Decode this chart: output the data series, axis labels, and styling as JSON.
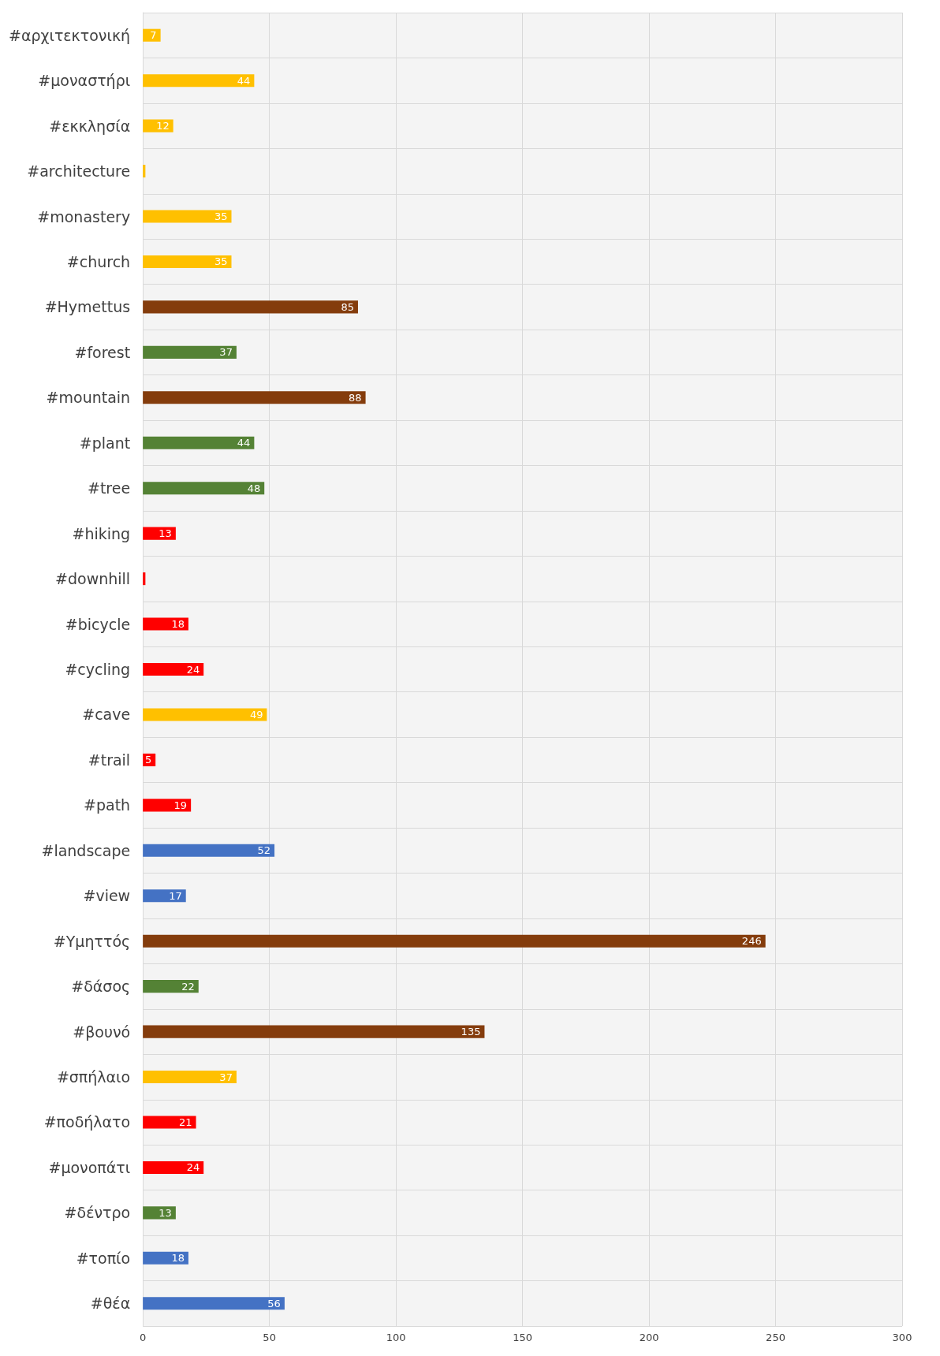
{
  "chart_data": {
    "type": "bar",
    "orientation": "horizontal",
    "categories": [
      "#αρχιτεκτονική",
      "#μοναστήρι",
      "#εκκλησία",
      "#architecture",
      "#monastery",
      "#church",
      "#Hymettus",
      "#forest",
      "#mountain",
      "#plant",
      "#tree",
      "#hiking",
      "#downhill",
      "#bicycle",
      "#cycling",
      "#cave",
      "#trail",
      "#path",
      "#landscape",
      "#view",
      "#Υμηττός",
      "#δάσος",
      "#βουνό",
      "#σπήλαιο",
      "#ποδήλατο",
      "#μονοπάτι",
      "#δέντρο",
      "#τοπίο",
      "#θέα"
    ],
    "values": [
      7,
      44,
      12,
      1,
      35,
      35,
      85,
      37,
      88,
      44,
      48,
      13,
      1,
      18,
      24,
      49,
      5,
      19,
      52,
      17,
      246,
      22,
      135,
      37,
      21,
      24,
      13,
      18,
      56
    ],
    "value_labels": [
      "7",
      "44",
      "12",
      null,
      "35",
      "35",
      "85",
      "37",
      "88",
      "44",
      "48",
      "13",
      null,
      "18",
      "24",
      "49",
      "5",
      "19",
      "52",
      "17",
      "246",
      "22",
      "135",
      "37",
      "21",
      "24",
      "13",
      "18",
      "56"
    ],
    "colors": [
      "#ffc000",
      "#ffc000",
      "#ffc000",
      "#ffc000",
      "#ffc000",
      "#ffc000",
      "#843c0c",
      "#548235",
      "#843c0c",
      "#548235",
      "#548235",
      "#ff0000",
      "#ff0000",
      "#ff0000",
      "#ff0000",
      "#ffc000",
      "#ff0000",
      "#ff0000",
      "#4472c4",
      "#4472c4",
      "#843c0c",
      "#548235",
      "#843c0c",
      "#ffc000",
      "#ff0000",
      "#ff0000",
      "#548235",
      "#4472c4",
      "#4472c4"
    ],
    "xlim": [
      0,
      300
    ],
    "xticks": [
      0,
      50,
      100,
      150,
      200,
      250,
      300
    ],
    "grid": true
  }
}
